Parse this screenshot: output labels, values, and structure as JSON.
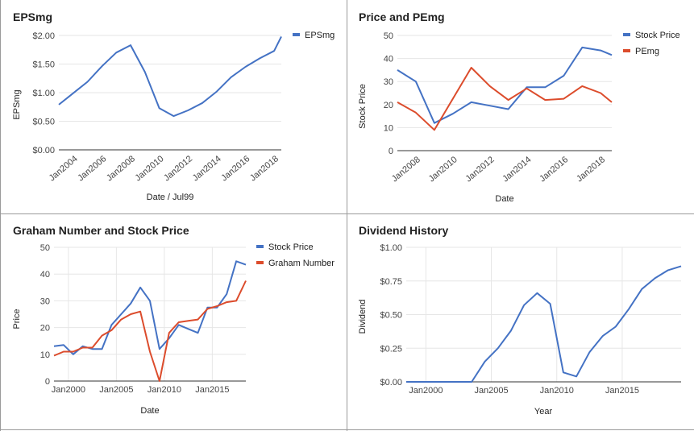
{
  "colors": {
    "blue": "#4472c4",
    "red": "#dc4c2c"
  },
  "chart_data": [
    {
      "id": "eps",
      "type": "line",
      "title": "EPSmg",
      "xlabel": "Date / Jul99",
      "ylabel": "EPSmg",
      "xlim": [
        2003,
        2018.5
      ],
      "ylim": [
        0,
        2
      ],
      "yticks": [
        0,
        0.5,
        1,
        1.5,
        2
      ],
      "ytick_labels": [
        "$0.00",
        "$0.50",
        "$1.00",
        "$1.50",
        "$2.00"
      ],
      "xticks": [
        2004,
        2006,
        2008,
        2010,
        2012,
        2014,
        2016,
        2018
      ],
      "xtick_labels": [
        "Jan2004",
        "Jan2006",
        "Jan2008",
        "Jan2010",
        "Jan2012",
        "Jan2014",
        "Jan2016",
        "Jan2018"
      ],
      "legend": "right",
      "series": [
        {
          "name": "EPSmg",
          "color": "#4472c4",
          "x": [
            2003,
            2004,
            2005,
            2006,
            2007,
            2008,
            2009,
            2010,
            2011,
            2012,
            2013,
            2014,
            2015,
            2016,
            2017,
            2018,
            2018.5
          ],
          "y": [
            0.79,
            0.99,
            1.19,
            1.46,
            1.7,
            1.83,
            1.36,
            0.73,
            0.59,
            0.69,
            0.82,
            1.02,
            1.27,
            1.45,
            1.6,
            1.73,
            1.98
          ]
        }
      ]
    },
    {
      "id": "pe",
      "type": "line",
      "title": "Price and PEmg",
      "xlabel": "Date",
      "ylabel": "Stock Price",
      "xlim": [
        2007,
        2018.6
      ],
      "ylim": [
        0,
        50
      ],
      "yticks": [
        0,
        10,
        20,
        30,
        40,
        50
      ],
      "ytick_labels": [
        "0",
        "10",
        "20",
        "30",
        "40",
        "50"
      ],
      "xticks": [
        2008,
        2010,
        2012,
        2014,
        2016,
        2018
      ],
      "xtick_labels": [
        "Jan2008",
        "Jan2010",
        "Jan2012",
        "Jan2014",
        "Jan2016",
        "Jan2018"
      ],
      "legend": "right",
      "series": [
        {
          "name": "Stock Price",
          "color": "#4472c4",
          "x": [
            2007,
            2008,
            2009,
            2010,
            2011,
            2012,
            2013,
            2014,
            2015,
            2016,
            2017,
            2018,
            2018.6
          ],
          "y": [
            35,
            30,
            12,
            16,
            21,
            19.5,
            18,
            27.5,
            27.5,
            32.5,
            44.8,
            43.5,
            41.5
          ]
        },
        {
          "name": "PEmg",
          "color": "#dc4c2c",
          "x": [
            2007,
            2008,
            2009,
            2010,
            2011,
            2012,
            2013,
            2014,
            2015,
            2016,
            2017,
            2018,
            2018.6
          ],
          "y": [
            21,
            16.5,
            9,
            22.5,
            36,
            28,
            22,
            27,
            22,
            22.5,
            28,
            25,
            21
          ]
        }
      ]
    },
    {
      "id": "graham",
      "type": "line",
      "title": "Graham Number and Stock Price",
      "xlabel": "Date",
      "ylabel": "Price",
      "xlim": [
        1998.5,
        2018.5
      ],
      "ylim": [
        0,
        50
      ],
      "yticks": [
        0,
        10,
        20,
        30,
        40,
        50
      ],
      "ytick_labels": [
        "0",
        "10",
        "20",
        "30",
        "40",
        "50"
      ],
      "xticks": [
        2000,
        2005,
        2010,
        2015
      ],
      "xtick_labels": [
        "Jan2000",
        "Jan2005",
        "Jan2010",
        "Jan2015"
      ],
      "vgrid": [
        2000,
        2005,
        2010,
        2015
      ],
      "legend": "right",
      "series": [
        {
          "name": "Stock Price",
          "color": "#4472c4",
          "x": [
            1998.5,
            1999.5,
            2000.5,
            2001.5,
            2002.5,
            2003.5,
            2004.5,
            2005.5,
            2006.5,
            2007.5,
            2008.5,
            2009.5,
            2010.5,
            2011.5,
            2012.5,
            2013.5,
            2014.5,
            2015.5,
            2016.5,
            2017.5,
            2018.5
          ],
          "y": [
            13,
            13.5,
            10,
            13,
            12,
            12,
            21,
            25,
            29,
            35,
            30,
            12,
            16,
            21,
            19.5,
            18,
            27.5,
            27.5,
            32.5,
            44.8,
            43.5
          ]
        },
        {
          "name": "Graham Number",
          "color": "#dc4c2c",
          "x": [
            1998.5,
            1999.5,
            2000.5,
            2001.5,
            2002.5,
            2003.5,
            2004.5,
            2005.5,
            2006.5,
            2007.5,
            2008.5,
            2009.5,
            2010.5,
            2011.5,
            2012.5,
            2013.5,
            2014.5,
            2015.5,
            2016.5,
            2017.5,
            2018.5
          ],
          "y": [
            9.5,
            11,
            11,
            12.5,
            12.5,
            17,
            19,
            23,
            25,
            26,
            11,
            0,
            18,
            22,
            22.5,
            23,
            27,
            28,
            29.5,
            30,
            37.5
          ]
        }
      ]
    },
    {
      "id": "div",
      "type": "line",
      "title": "Dividend History",
      "xlabel": "Year",
      "ylabel": "Dividend",
      "xlim": [
        1998.5,
        2019.5
      ],
      "ylim": [
        0,
        1
      ],
      "yticks": [
        0,
        0.25,
        0.5,
        0.75,
        1
      ],
      "ytick_labels": [
        "$0.00",
        "$0.25",
        "$0.50",
        "$0.75",
        "$1.00"
      ],
      "xticks": [
        2000,
        2005,
        2010,
        2015
      ],
      "xtick_labels": [
        "Jan2000",
        "Jan2005",
        "Jan2010",
        "Jan2015"
      ],
      "vgrid": [
        2000,
        2005,
        2010,
        2015
      ],
      "legend": "none",
      "series": [
        {
          "name": "",
          "color": "#4472c4",
          "x": [
            1998.5,
            1999.5,
            2000.5,
            2001.5,
            2002.5,
            2003.5,
            2004.5,
            2005.5,
            2006.5,
            2007.5,
            2008.5,
            2009.5,
            2010.5,
            2011.5,
            2012.5,
            2013.5,
            2014.5,
            2015.5,
            2016.5,
            2017.5,
            2018.5,
            2019.5
          ],
          "y": [
            0,
            0,
            0,
            0,
            0,
            0,
            0.15,
            0.25,
            0.38,
            0.57,
            0.66,
            0.58,
            0.07,
            0.04,
            0.22,
            0.34,
            0.41,
            0.54,
            0.69,
            0.77,
            0.83,
            0.86
          ]
        }
      ]
    }
  ]
}
